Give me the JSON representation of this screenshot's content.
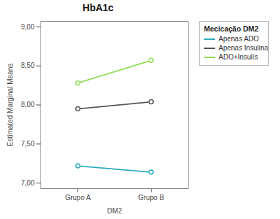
{
  "chart_data": {
    "type": "line",
    "title": "HbA1c",
    "xlabel": "DM2",
    "ylabel": "Estimated Marginal Means",
    "categories": [
      "Grupo A",
      "Grupo B"
    ],
    "series": [
      {
        "name": "Apenas ADO",
        "color": "#29ABBE",
        "values": [
          7.22,
          7.14
        ]
      },
      {
        "name": "Apenas Insulina",
        "color": "#555555",
        "values": [
          7.95,
          8.04
        ]
      },
      {
        "name": "ADO+Insulís",
        "color": "#90DD55",
        "values": [
          8.28,
          8.57
        ]
      }
    ],
    "ylim": [
      6.93,
      9.07
    ],
    "yticks": [
      {
        "value": 7.0,
        "label": "7,00"
      },
      {
        "value": 7.5,
        "label": "7,50"
      },
      {
        "value": 8.0,
        "label": "8,00"
      },
      {
        "value": 8.5,
        "label": "8,50"
      },
      {
        "value": 9.0,
        "label": "9,00"
      }
    ],
    "grid": false,
    "legend": "right",
    "legend_title": "Mecicação DM2",
    "marker": "circle"
  }
}
